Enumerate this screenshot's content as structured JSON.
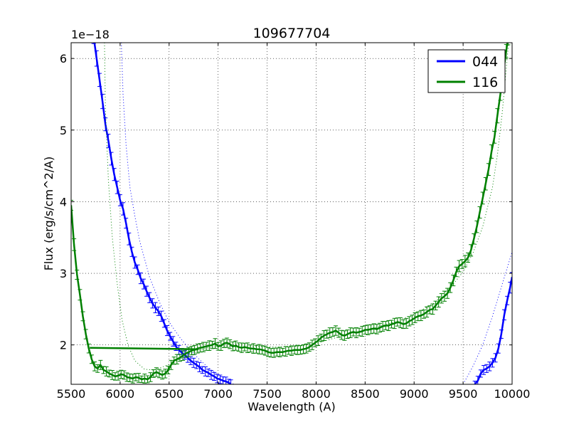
{
  "chart_data": {
    "type": "line",
    "title": "109677704",
    "xlabel": "Wavelength (A)",
    "ylabel": "Flux (erg/s/cm^2/A)",
    "offset_text": "1e−18",
    "xlim": [
      5500,
      10000
    ],
    "ylim": [
      1.45,
      6.22
    ],
    "x_ticks": [
      "5500",
      "6000",
      "6500",
      "7000",
      "7500",
      "8000",
      "8500",
      "9000",
      "9500",
      "10000"
    ],
    "y_ticks": [
      "2",
      "3",
      "4",
      "5",
      "6"
    ],
    "grid": true,
    "legend_position": "top-right",
    "series": [
      {
        "name": "044",
        "color": "#0000ff",
        "points": [
          [
            5730,
            6.3
          ],
          [
            5760,
            6.0
          ],
          [
            5790,
            5.7
          ],
          [
            5820,
            5.4
          ],
          [
            5850,
            5.08
          ],
          [
            5880,
            4.85
          ],
          [
            5910,
            4.6
          ],
          [
            5940,
            4.38
          ],
          [
            5970,
            4.2
          ],
          [
            6000,
            4.02
          ],
          [
            6030,
            3.9
          ],
          [
            6060,
            3.7
          ],
          [
            6090,
            3.48
          ],
          [
            6120,
            3.3
          ],
          [
            6150,
            3.15
          ],
          [
            6180,
            3.05
          ],
          [
            6210,
            2.93
          ],
          [
            6240,
            2.85
          ],
          [
            6270,
            2.75
          ],
          [
            6300,
            2.66
          ],
          [
            6330,
            2.58
          ],
          [
            6360,
            2.52
          ],
          [
            6390,
            2.47
          ],
          [
            6420,
            2.4
          ],
          [
            6450,
            2.3
          ],
          [
            6480,
            2.2
          ],
          [
            6510,
            2.12
          ],
          [
            6540,
            2.05
          ],
          [
            6570,
            1.98
          ],
          [
            6600,
            1.93
          ],
          [
            6630,
            1.89
          ],
          [
            6660,
            1.86
          ],
          [
            6690,
            1.82
          ],
          [
            6720,
            1.78
          ],
          [
            6750,
            1.75
          ],
          [
            6780,
            1.72
          ],
          [
            6810,
            1.69
          ],
          [
            6840,
            1.65
          ],
          [
            6870,
            1.63
          ],
          [
            6900,
            1.61
          ],
          [
            6930,
            1.58
          ],
          [
            6960,
            1.56
          ],
          [
            6990,
            1.53
          ],
          [
            7020,
            1.52
          ],
          [
            7050,
            1.5
          ],
          [
            7080,
            1.49
          ],
          [
            7110,
            1.47
          ],
          [
            7130,
            1.45
          ]
        ],
        "tail_points": [
          [
            9620,
            1.45
          ],
          [
            9650,
            1.5
          ],
          [
            9680,
            1.6
          ],
          [
            9710,
            1.65
          ],
          [
            9740,
            1.67
          ],
          [
            9770,
            1.7
          ],
          [
            9800,
            1.75
          ],
          [
            9830,
            1.82
          ],
          [
            9860,
            1.95
          ],
          [
            9890,
            2.15
          ],
          [
            9920,
            2.42
          ],
          [
            9950,
            2.62
          ],
          [
            9980,
            2.8
          ],
          [
            10000,
            2.95
          ]
        ],
        "fit": [
          [
            6010,
            6.3
          ],
          [
            6030,
            5.5
          ],
          [
            6060,
            4.8
          ],
          [
            6100,
            4.2
          ],
          [
            6150,
            3.8
          ],
          [
            6200,
            3.45
          ],
          [
            6300,
            2.95
          ],
          [
            6400,
            2.6
          ],
          [
            6500,
            2.32
          ],
          [
            6600,
            2.12
          ],
          [
            6700,
            1.95
          ],
          [
            6800,
            1.81
          ],
          [
            6900,
            1.68
          ],
          [
            7000,
            1.58
          ],
          [
            7100,
            1.5
          ],
          [
            7160,
            1.45
          ]
        ],
        "fit_tail": [
          [
            9500,
            1.45
          ],
          [
            9600,
            1.7
          ],
          [
            9700,
            2.0
          ],
          [
            9800,
            2.4
          ],
          [
            9900,
            2.85
          ],
          [
            10000,
            3.3
          ]
        ]
      },
      {
        "name": "116",
        "color": "#008000",
        "points": [
          [
            5500,
            3.95
          ],
          [
            5530,
            3.4
          ],
          [
            5560,
            2.98
          ],
          [
            5590,
            2.7
          ],
          [
            5620,
            2.4
          ],
          [
            5650,
            2.15
          ],
          [
            5680,
            1.95
          ],
          [
            5710,
            1.8
          ],
          [
            5740,
            1.7
          ],
          [
            5770,
            1.67
          ],
          [
            5800,
            1.72
          ],
          [
            5830,
            1.65
          ],
          [
            5860,
            1.63
          ],
          [
            5890,
            1.6
          ],
          [
            5920,
            1.58
          ],
          [
            5950,
            1.56
          ],
          [
            5980,
            1.57
          ],
          [
            6010,
            1.59
          ],
          [
            6040,
            1.58
          ],
          [
            6070,
            1.55
          ],
          [
            6100,
            1.54
          ],
          [
            6130,
            1.53
          ],
          [
            6160,
            1.55
          ],
          [
            6190,
            1.54
          ],
          [
            6220,
            1.52
          ],
          [
            6250,
            1.53
          ],
          [
            6280,
            1.52
          ],
          [
            6310,
            1.55
          ],
          [
            6340,
            1.6
          ],
          [
            6370,
            1.62
          ],
          [
            6400,
            1.6
          ],
          [
            6430,
            1.58
          ],
          [
            6460,
            1.6
          ],
          [
            6490,
            1.65
          ],
          [
            6520,
            1.72
          ],
          [
            6550,
            1.78
          ],
          [
            6580,
            1.8
          ],
          [
            6610,
            1.82
          ],
          [
            6640,
            1.85
          ],
          [
            6670,
            1.88
          ],
          [
            6700,
            1.9
          ],
          [
            6730,
            1.92
          ],
          [
            6760,
            1.93
          ],
          [
            6790,
            1.95
          ],
          [
            6820,
            1.96
          ],
          [
            6850,
            1.97
          ],
          [
            6880,
            1.98
          ],
          [
            6910,
            1.99
          ],
          [
            6940,
            2.0
          ],
          [
            6970,
            2.02
          ],
          [
            7000,
            1.98
          ],
          [
            7030,
            1.99
          ],
          [
            7060,
            2.02
          ],
          [
            7090,
            2.03
          ],
          [
            7120,
            2.01
          ],
          [
            7150,
            1.98
          ],
          [
            7180,
            1.99
          ],
          [
            7210,
            1.97
          ],
          [
            7240,
            1.96
          ],
          [
            7270,
            1.97
          ],
          [
            7300,
            1.96
          ],
          [
            7330,
            1.95
          ],
          [
            7360,
            1.95
          ],
          [
            7390,
            1.94
          ],
          [
            7420,
            1.94
          ],
          [
            7450,
            1.93
          ],
          [
            7480,
            1.92
          ],
          [
            7510,
            1.9
          ],
          [
            7540,
            1.89
          ],
          [
            7570,
            1.89
          ],
          [
            7600,
            1.9
          ],
          [
            7630,
            1.9
          ],
          [
            7660,
            1.9
          ],
          [
            7690,
            1.91
          ],
          [
            7720,
            1.92
          ],
          [
            7750,
            1.92
          ],
          [
            7780,
            1.93
          ],
          [
            7810,
            1.93
          ],
          [
            7840,
            1.93
          ],
          [
            7870,
            1.94
          ],
          [
            7900,
            1.95
          ],
          [
            7930,
            1.97
          ],
          [
            7960,
            2.0
          ],
          [
            7990,
            2.03
          ],
          [
            8020,
            2.06
          ],
          [
            8050,
            2.1
          ],
          [
            8080,
            2.13
          ],
          [
            8110,
            2.15
          ],
          [
            8140,
            2.17
          ],
          [
            8170,
            2.18
          ],
          [
            8200,
            2.2
          ],
          [
            8230,
            2.17
          ],
          [
            8260,
            2.14
          ],
          [
            8290,
            2.13
          ],
          [
            8320,
            2.15
          ],
          [
            8350,
            2.17
          ],
          [
            8380,
            2.18
          ],
          [
            8410,
            2.17
          ],
          [
            8440,
            2.18
          ],
          [
            8470,
            2.19
          ],
          [
            8500,
            2.21
          ],
          [
            8530,
            2.21
          ],
          [
            8560,
            2.22
          ],
          [
            8590,
            2.23
          ],
          [
            8620,
            2.22
          ],
          [
            8650,
            2.24
          ],
          [
            8680,
            2.26
          ],
          [
            8710,
            2.27
          ],
          [
            8740,
            2.27
          ],
          [
            8770,
            2.29
          ],
          [
            8800,
            2.3
          ],
          [
            8830,
            2.32
          ],
          [
            8860,
            2.31
          ],
          [
            8890,
            2.29
          ],
          [
            8920,
            2.3
          ],
          [
            8950,
            2.33
          ],
          [
            8980,
            2.35
          ],
          [
            9010,
            2.38
          ],
          [
            9040,
            2.4
          ],
          [
            9070,
            2.41
          ],
          [
            9100,
            2.43
          ],
          [
            9130,
            2.46
          ],
          [
            9160,
            2.49
          ],
          [
            9190,
            2.5
          ],
          [
            9220,
            2.55
          ],
          [
            9250,
            2.6
          ],
          [
            9280,
            2.65
          ],
          [
            9310,
            2.68
          ],
          [
            9340,
            2.72
          ],
          [
            9370,
            2.8
          ],
          [
            9400,
            2.9
          ],
          [
            9430,
            3.02
          ],
          [
            9460,
            3.1
          ],
          [
            9490,
            3.13
          ],
          [
            9520,
            3.17
          ],
          [
            9550,
            3.22
          ],
          [
            9580,
            3.32
          ],
          [
            9610,
            3.48
          ],
          [
            9640,
            3.65
          ],
          [
            9670,
            3.85
          ],
          [
            9700,
            4.05
          ],
          [
            9730,
            4.25
          ],
          [
            9760,
            4.45
          ],
          [
            9790,
            4.7
          ],
          [
            9820,
            4.9
          ],
          [
            9850,
            5.2
          ],
          [
            9880,
            5.5
          ],
          [
            9910,
            5.8
          ],
          [
            9940,
            6.1
          ],
          [
            9960,
            6.3
          ]
        ],
        "jump_segment": [
          [
            5690,
            1.96
          ],
          [
            6800,
            1.94
          ]
        ],
        "fit": [
          [
            5840,
            6.3
          ],
          [
            5850,
            5.3
          ],
          [
            5880,
            4.3
          ],
          [
            5920,
            3.5
          ],
          [
            5970,
            2.85
          ],
          [
            6020,
            2.35
          ],
          [
            6080,
            2.0
          ],
          [
            6150,
            1.78
          ],
          [
            6250,
            1.66
          ],
          [
            6350,
            1.65
          ],
          [
            6450,
            1.7
          ],
          [
            6550,
            1.76
          ],
          [
            6650,
            1.83
          ],
          [
            6750,
            1.9
          ],
          [
            6850,
            1.95
          ],
          [
            7000,
            1.98
          ],
          [
            7200,
            1.99
          ],
          [
            7400,
            1.98
          ],
          [
            7600,
            1.97
          ],
          [
            7800,
            1.98
          ],
          [
            8000,
            2.02
          ],
          [
            8200,
            2.1
          ],
          [
            8400,
            2.18
          ],
          [
            8600,
            2.24
          ],
          [
            8800,
            2.32
          ],
          [
            9000,
            2.43
          ],
          [
            9200,
            2.58
          ],
          [
            9400,
            2.85
          ],
          [
            9500,
            3.02
          ],
          [
            9600,
            3.28
          ],
          [
            9700,
            3.65
          ],
          [
            9800,
            4.2
          ],
          [
            9850,
            4.65
          ],
          [
            9900,
            5.25
          ],
          [
            9950,
            6.0
          ],
          [
            9970,
            6.3
          ]
        ]
      }
    ]
  }
}
